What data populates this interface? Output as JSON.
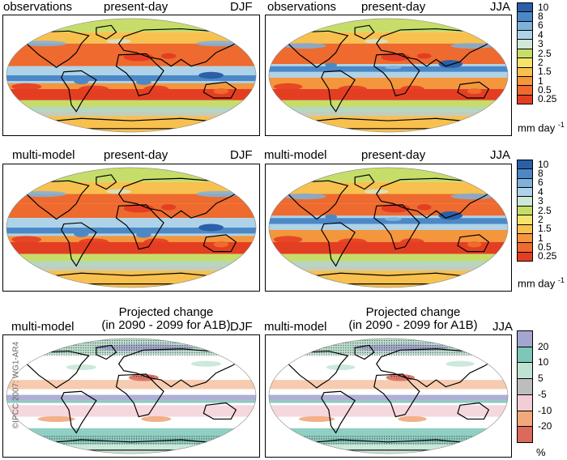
{
  "rows": [
    {
      "type": "precip",
      "left": {
        "source": "observations",
        "period": "present-day",
        "season": "DJF"
      },
      "right": {
        "source": "observations",
        "period": "present-day",
        "season": "JJA"
      }
    },
    {
      "type": "precip",
      "left": {
        "source": "multi-model",
        "period": "present-day",
        "season": "DJF"
      },
      "right": {
        "source": "multi-model",
        "period": "present-day",
        "season": "JJA"
      }
    },
    {
      "type": "change",
      "left": {
        "source": "multi-model",
        "title_line1": "Projected change",
        "title_line2": "(in 2090 - 2099 for A1B)",
        "season": "DJF"
      },
      "right": {
        "source": "multi-model",
        "title_line1": "Projected change",
        "title_line2": "(in 2090 - 2099 for A1B)",
        "season": "JJA"
      }
    }
  ],
  "precip_colorbar": {
    "unit": "mm day",
    "unit_exp": "-1",
    "ticks": [
      "10",
      "8",
      "6",
      "4",
      "3",
      "2.5",
      "2",
      "1.5",
      "1",
      "0.5",
      "0.25"
    ],
    "colors": [
      "#2b5fa8",
      "#4d88c6",
      "#7fb2da",
      "#aed3e8",
      "#cfe8d8",
      "#c6dd6a",
      "#f6e36b",
      "#f8c04e",
      "#f4963c",
      "#ee6a2e",
      "#e43e22"
    ]
  },
  "change_colorbar": {
    "unit": "%",
    "ticks": [
      "20",
      "10",
      "5",
      "-5",
      "-10",
      "-20"
    ],
    "colors": [
      "#a4a6cf",
      "#7cc7b8",
      "#bfe3d2",
      "#bdbdbd",
      "#f3cdd6",
      "#f1a97b",
      "#d96a5c"
    ]
  },
  "credit": "©IPCC 2007: WG1-AR4"
}
